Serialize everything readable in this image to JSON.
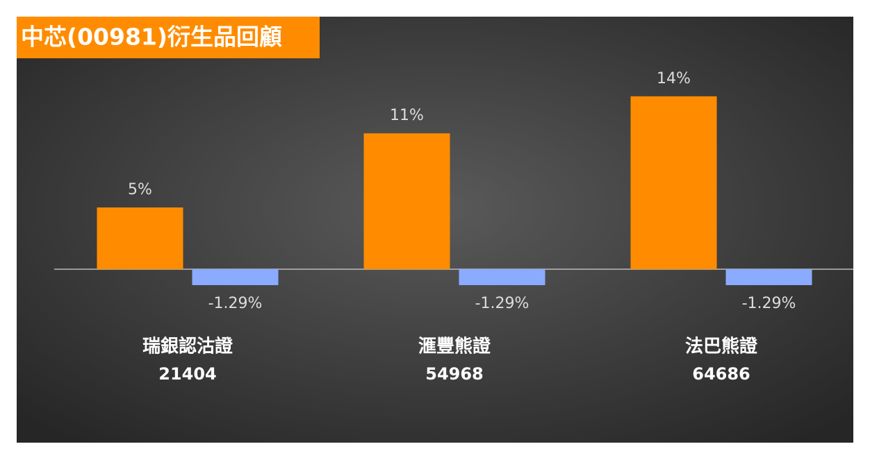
{
  "chart_data": {
    "type": "bar",
    "title": "中芯(00981)衍生品回顧",
    "categories": [
      "瑞銀認沽證",
      "滙豐熊證",
      "法巴熊證"
    ],
    "codes": [
      "21404",
      "54968",
      "64686"
    ],
    "series": [
      {
        "color": "#ff8c00",
        "values": [
          5,
          11,
          14
        ],
        "value_labels": [
          "5%",
          "11%",
          "14%"
        ]
      },
      {
        "color": "#8aabff",
        "values": [
          -1.29,
          -1.29,
          -1.29
        ],
        "value_labels": [
          "-1.29%",
          "-1.29%",
          "-1.29%"
        ]
      }
    ]
  }
}
